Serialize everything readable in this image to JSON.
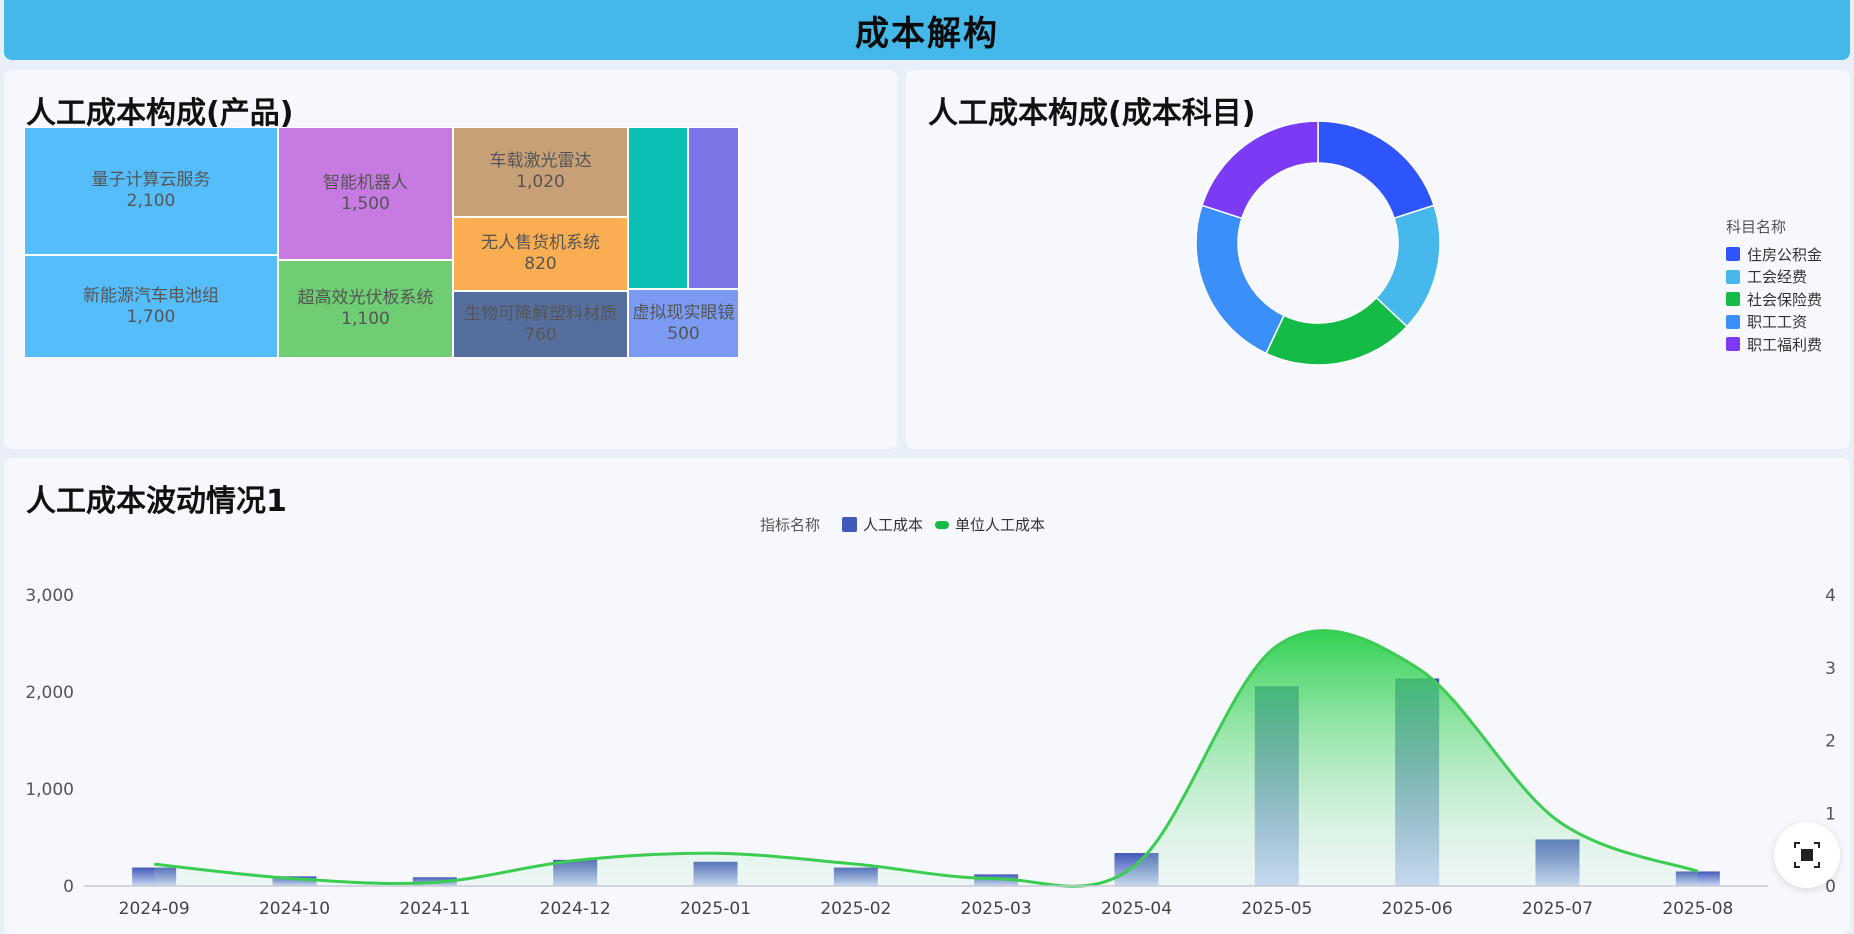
{
  "header": {
    "title": "成本解构"
  },
  "panels": {
    "treemap_title": "人工成本构成(产品)",
    "donut_title": "人工成本构成(成本科目)",
    "bottom_title": "人工成本波动情况1"
  },
  "chart_data": [
    {
      "type": "treemap",
      "title": "人工成本构成(产品)",
      "items": [
        {
          "name": "量子计算云服务",
          "value": 2100,
          "label": "2,100",
          "color": "#56bdfb"
        },
        {
          "name": "新能源汽车电池组",
          "value": 1700,
          "label": "1,700",
          "color": "#56bdfb"
        },
        {
          "name": "智能机器人",
          "value": 1500,
          "label": "1,500",
          "color": "#c67ae2"
        },
        {
          "name": "超高效光伏板系统",
          "value": 1100,
          "label": "1,100",
          "color": "#6fce73"
        },
        {
          "name": "车载激光雷达",
          "value": 1020,
          "label": "1,020",
          "color": "#c8a077"
        },
        {
          "name": "无人售货机系统",
          "value": 820,
          "label": "820",
          "color": "#fbad52"
        },
        {
          "name": "生物可降解塑料材质",
          "value": 760,
          "label": "760",
          "color": "#566e9e"
        },
        {
          "name": "",
          "value": 600,
          "label": "",
          "color": "#0cbfb4"
        },
        {
          "name": "",
          "value": 600,
          "label": "",
          "color": "#7b74e6"
        },
        {
          "name": "虚拟现实眼镜",
          "value": 500,
          "label": "500",
          "color": "#7b9bf2"
        }
      ]
    },
    {
      "type": "pie",
      "title": "人工成本构成(成本科目)",
      "legend_title": "科目名称",
      "legend_position": "right",
      "slices": [
        {
          "name": "住房公积金",
          "value": 20,
          "color": "#2d55fb"
        },
        {
          "name": "工会经费",
          "value": 17,
          "color": "#47b8eb"
        },
        {
          "name": "社会保险费",
          "value": 20,
          "color": "#14bb46"
        },
        {
          "name": "职工工资",
          "value": 23,
          "color": "#3a8ff9"
        },
        {
          "name": "职工福利费",
          "value": 20,
          "color": "#7b3bf5"
        }
      ]
    },
    {
      "type": "bar",
      "title": "人工成本波动情况1",
      "legend_title": "指标名称",
      "legend_position": "top",
      "categories": [
        "2024-09",
        "2024-10",
        "2024-11",
        "2024-12",
        "2025-01",
        "2025-02",
        "2025-03",
        "2025-04",
        "2025-05",
        "2025-06",
        "2025-07",
        "2025-08"
      ],
      "series": [
        {
          "name": "人工成本",
          "type": "bar",
          "axis": "left",
          "color": "#4359b8",
          "values": [
            190,
            100,
            90,
            270,
            250,
            190,
            120,
            340,
            2060,
            2140,
            480,
            150
          ]
        },
        {
          "name": "单位人工成本",
          "type": "line",
          "axis": "right",
          "color": "#3dcc52",
          "values": [
            0.3,
            0.1,
            0.05,
            0.35,
            0.45,
            0.3,
            0.1,
            0.3,
            3.3,
            3.0,
            0.9,
            0.2
          ]
        }
      ],
      "ylim_left": [
        0,
        3000
      ],
      "yticks_left": [
        "0",
        "1,000",
        "2,000",
        "3,000"
      ],
      "ylim_right": [
        0,
        4
      ],
      "yticks_right": [
        "0",
        "1",
        "2",
        "3",
        "4"
      ]
    }
  ],
  "icons": {
    "expand": "fullscreen-exit-icon"
  }
}
